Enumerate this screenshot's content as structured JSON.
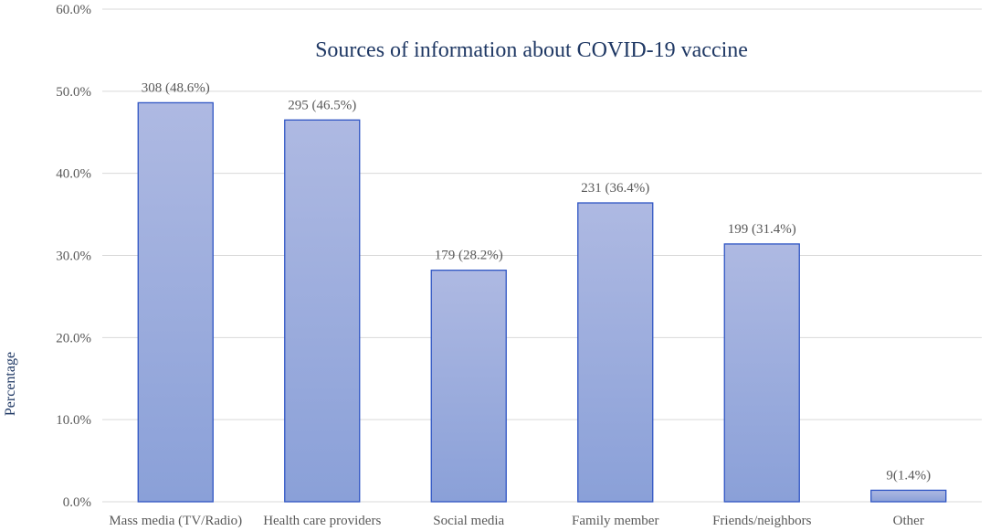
{
  "chart_data": {
    "type": "bar",
    "title": "Sources of information about COVID-19 vaccine",
    "xlabel": "",
    "ylabel": "Percentage",
    "categories": [
      "Mass media (TV/Radio)",
      "Health care providers",
      "Social media",
      "Family member",
      "Friends/neighbors",
      "Other"
    ],
    "values": [
      48.6,
      46.5,
      28.2,
      36.4,
      31.4,
      1.4
    ],
    "data_labels": [
      "308 (48.6%)",
      "295 (46.5%)",
      "179 (28.2%)",
      "231 (36.4%)",
      "199 (31.4%)",
      "9(1.4%)"
    ],
    "ylim": [
      0,
      60
    ],
    "y_ticks": [
      "0.0%",
      "10.0%",
      "20.0%",
      "30.0%",
      "40.0%",
      "50.0%",
      "60.0%"
    ],
    "grid": true,
    "legend": "none",
    "bar_gradient_top": "#aeb9e2",
    "bar_gradient_bottom": "#8aa0d8",
    "bar_border_color": "#2f55c4",
    "title_color": "#1f3864",
    "grid_color": "#d9d9d9",
    "label_color": "#595959"
  }
}
